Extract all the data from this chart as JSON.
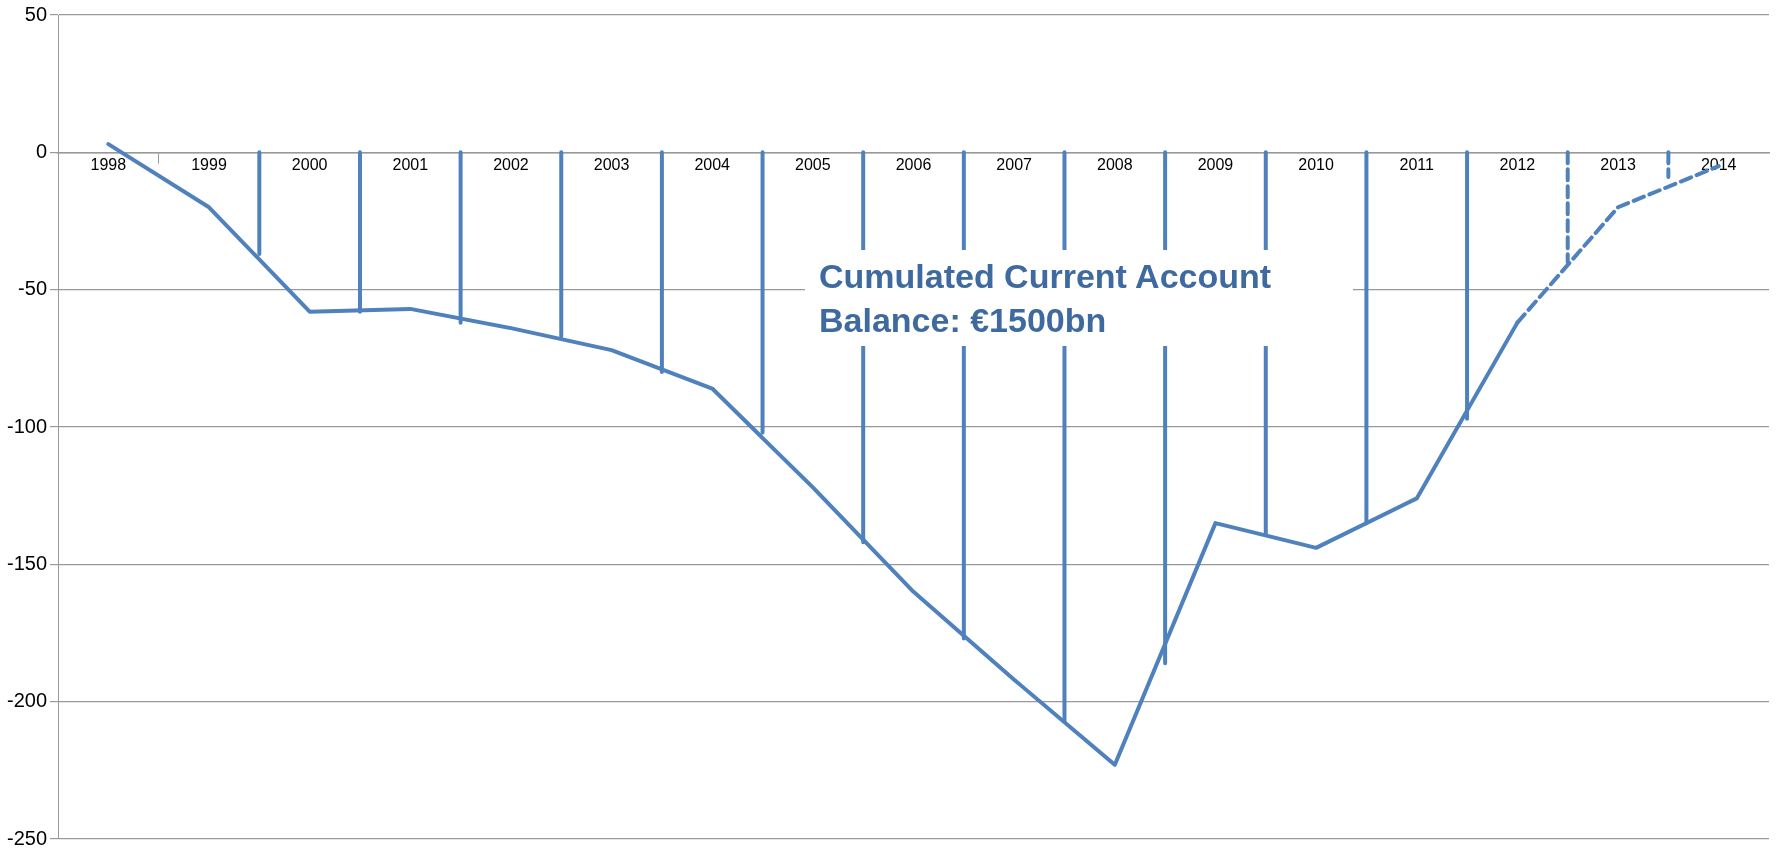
{
  "chart_data": {
    "type": "line",
    "x": [
      1998,
      1999,
      2000,
      2001,
      2002,
      2003,
      2004,
      2005,
      2006,
      2007,
      2008,
      2009,
      2010,
      2011,
      2012,
      2013,
      2014
    ],
    "xlim": [
      1997.5,
      2014.5
    ],
    "xticks": [
      1998,
      {
        "value": 1998.5,
        "label": null
      },
      1999,
      {
        "value": 1999.5,
        "label": null
      },
      2000,
      {
        "value": 2000.5,
        "label": null
      },
      2001,
      {
        "value": 2001.5,
        "label": null
      },
      2002,
      {
        "value": 2002.5,
        "label": null
      },
      2003,
      {
        "value": 2003.5,
        "label": null
      },
      2004,
      {
        "value": 2004.5,
        "label": null
      },
      2005,
      {
        "value": 2005.5,
        "label": null
      },
      2006,
      {
        "value": 2006.5,
        "label": null
      },
      2007,
      {
        "value": 2007.5,
        "label": null
      },
      2008,
      {
        "value": 2008.5,
        "label": null
      },
      2009,
      {
        "value": 2009.5,
        "label": null
      },
      2010,
      {
        "value": 2010.5,
        "label": null
      },
      2011,
      {
        "value": 2011.5,
        "label": null
      },
      2012,
      {
        "value": 2012.5,
        "label": null
      },
      2013,
      {
        "value": 2013.5,
        "label": null
      },
      2014
    ],
    "series": [
      {
        "color": "#4f81bd",
        "line_style": "solid",
        "values": [
          3,
          -20,
          -58,
          -57,
          -64,
          -72,
          -86,
          -122,
          -160,
          -192,
          -223,
          -135,
          -144,
          -126,
          -62,
          null,
          null
        ]
      },
      {
        "color": "#4f81bd",
        "line_style": "dashed",
        "values": [
          null,
          null,
          null,
          null,
          null,
          null,
          null,
          null,
          null,
          null,
          null,
          null,
          null,
          null,
          -62,
          -20,
          -5
        ]
      },
      {
        "color": "#4f81bd",
        "line_style": "solid",
        "x": [
          1999.5,
          1999.5
        ],
        "values": [
          0,
          -37
        ]
      },
      {
        "color": "#4f81bd",
        "line_style": "solid",
        "x": [
          2000.5,
          2000.5
        ],
        "values": [
          0,
          -58
        ]
      },
      {
        "color": "#4f81bd",
        "line_style": "solid",
        "x": [
          2001.5,
          2001.5
        ],
        "values": [
          0,
          -62
        ]
      },
      {
        "color": "#4f81bd",
        "line_style": "solid",
        "x": [
          2002.5,
          2002.5
        ],
        "values": [
          0,
          -67
        ]
      },
      {
        "color": "#4f81bd",
        "line_style": "solid",
        "x": [
          2003.5,
          2003.5
        ],
        "values": [
          0,
          -80
        ]
      },
      {
        "color": "#4f81bd",
        "line_style": "solid",
        "x": [
          2004.5,
          2004.5
        ],
        "values": [
          0,
          -102
        ]
      },
      {
        "color": "#4f81bd",
        "line_style": "solid",
        "x": [
          2005.5,
          2005.5
        ],
        "values": [
          0,
          -142
        ]
      },
      {
        "color": "#4f81bd",
        "line_style": "solid",
        "x": [
          2006.5,
          2006.5
        ],
        "values": [
          0,
          -177
        ]
      },
      {
        "color": "#4f81bd",
        "line_style": "solid",
        "x": [
          2007.5,
          2007.5
        ],
        "values": [
          0,
          -207
        ]
      },
      {
        "color": "#4f81bd",
        "line_style": "solid",
        "x": [
          2008.5,
          2008.5
        ],
        "values": [
          0,
          -186
        ]
      },
      {
        "color": "#4f81bd",
        "line_style": "solid",
        "x": [
          2009.5,
          2009.5
        ],
        "values": [
          0,
          -139
        ]
      },
      {
        "color": "#4f81bd",
        "line_style": "solid",
        "x": [
          2010.5,
          2010.5
        ],
        "values": [
          0,
          -135
        ]
      },
      {
        "color": "#4f81bd",
        "line_style": "solid",
        "x": [
          2011.5,
          2011.5
        ],
        "values": [
          0,
          -97
        ]
      },
      {
        "color": "#4f81bd",
        "line_style": "dashed",
        "x": [
          2012.5,
          2012.5
        ],
        "values": [
          0,
          -40
        ]
      },
      {
        "color": "#4f81bd",
        "line_style": "dashed",
        "x": [
          2013.5,
          2013.5
        ],
        "values": [
          0,
          -9
        ]
      }
    ],
    "ylim": [
      -250,
      50
    ],
    "yticks": [
      -250,
      -200,
      -150,
      -100,
      -50,
      0,
      50
    ],
    "grid": "y",
    "legend": false,
    "marker": "none",
    "annotations": [
      "Cumulated Current Account Balance:  €1500bn"
    ]
  }
}
